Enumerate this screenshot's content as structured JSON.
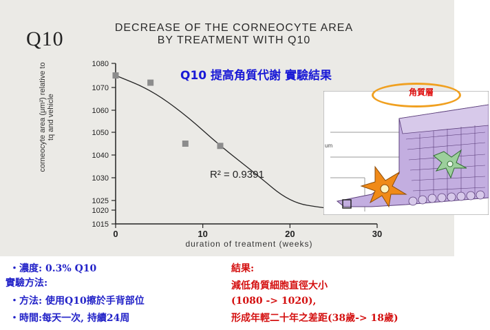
{
  "header": {
    "q10": "Q10",
    "title_line1": "DECREASE OF THE CORNEOCYTE AREA",
    "title_line2": "BY TREATMENT WITH Q10",
    "zh_title": "Q10 提高角質代謝 實驗結果",
    "skin_label": "角質層"
  },
  "chart_data": {
    "type": "scatter",
    "title": "DECREASE OF THE CORNEOCYTE AREA BY TREATMENT WITH Q10",
    "xlabel": "duration of treatment (weeks)",
    "ylabel": "corneocyte area (μm²) relative to tq and vehicle",
    "xlim": [
      0,
      30
    ],
    "ylim": [
      1015,
      1080
    ],
    "x_ticks": [
      "0",
      "10",
      "20",
      "30"
    ],
    "y_ticks": [
      "1015",
      "1020",
      "1025",
      "1030",
      "1040",
      "1050",
      "1060",
      "1070",
      "1080"
    ],
    "series": [
      {
        "points": [
          [
            0,
            1075
          ],
          [
            4,
            1072
          ],
          [
            8,
            1045
          ],
          [
            12,
            1044
          ],
          [
            25,
            1021
          ]
        ]
      }
    ],
    "fit_curve": [
      [
        0,
        1075
      ],
      [
        4,
        1069
      ],
      [
        8,
        1058
      ],
      [
        12,
        1044
      ],
      [
        16,
        1032
      ],
      [
        20,
        1024
      ],
      [
        24,
        1021
      ],
      [
        27,
        1020
      ]
    ],
    "annotation": "R² = 0.9391"
  },
  "notes": {
    "left": [
      "・濃度: 0.3% Q10",
      "實驗方法:",
      "・方法: 使用Q10擦於手背部位",
      "・時間:每天一次, 持續24周"
    ],
    "right": [
      "結果:",
      "減低角質細胞直徑大小",
      "(1080 -> 1020),",
      "形成年輕二十年之差距(38歲-> 18歲)"
    ]
  },
  "colors": {
    "notes_left": "#2323c8",
    "notes_right": "#d41010",
    "zh_title": "#1a1ad6",
    "highlight_ellipse": "#f0a020",
    "cells_purple": "#b69ad6",
    "cell_orange": "#f08a18",
    "cell_green": "#9ccf9c"
  }
}
